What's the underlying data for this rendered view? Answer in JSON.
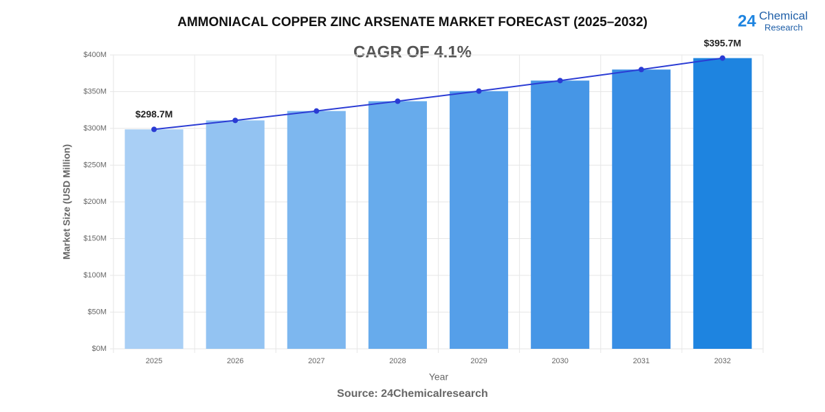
{
  "chart_data": {
    "type": "bar",
    "title": "AMMONIACAL COPPER ZINC ARSENATE MARKET FORECAST (2025–2032)",
    "subtitle": "CAGR OF 4.1%",
    "logo": {
      "number": "24",
      "name": "Chemical",
      "tagline": "Research"
    },
    "x_label": "Year",
    "y_label": "Market Size (USD Million)",
    "source": "Source: 24Chemicalresearch",
    "categories": [
      "2025",
      "2026",
      "2027",
      "2028",
      "2029",
      "2030",
      "2031",
      "2032"
    ],
    "values": [
      298.7,
      310.9,
      323.7,
      337.0,
      350.8,
      365.1,
      380.1,
      395.7
    ],
    "value_labels": [
      "$298.7M",
      null,
      null,
      null,
      null,
      null,
      null,
      "$395.7M"
    ],
    "colors": [
      "#a9cff5",
      "#93c3f2",
      "#7db7ef",
      "#67abec",
      "#559fe9",
      "#4696e6",
      "#388ee4",
      "#1e84e0"
    ],
    "line_color": "#2a3bd4",
    "ylim": [
      0,
      400
    ],
    "yticks": [
      {
        "value": 0,
        "label": "$0M"
      },
      {
        "value": 50,
        "label": "$50M"
      },
      {
        "value": 100,
        "label": "$100M"
      },
      {
        "value": 150,
        "label": "$150M"
      },
      {
        "value": 200,
        "label": "$200M"
      },
      {
        "value": 250,
        "label": "$250M"
      },
      {
        "value": 300,
        "label": "$300M"
      },
      {
        "value": 350,
        "label": "$350M"
      },
      {
        "value": 400,
        "label": "$400M"
      }
    ],
    "grid": true
  }
}
